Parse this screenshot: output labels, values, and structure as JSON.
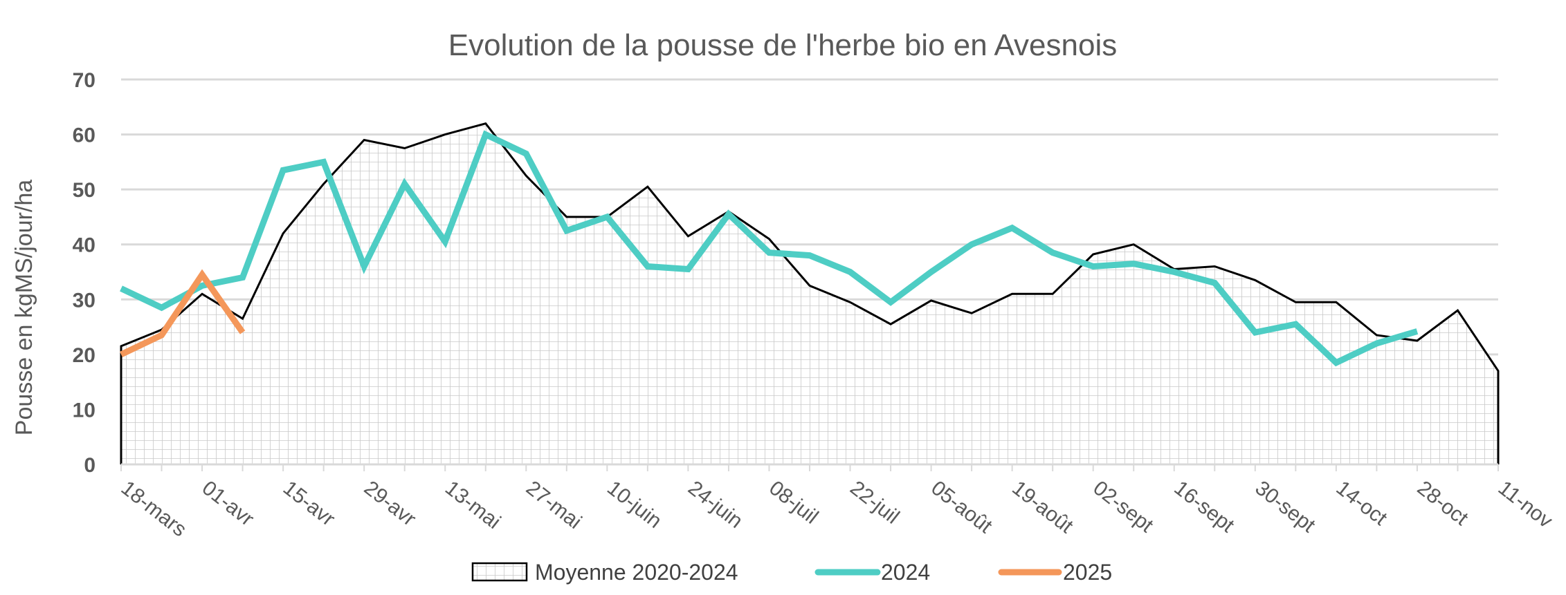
{
  "chart_data": {
    "type": "line",
    "title": "Evolution de la pousse de l'herbe bio en Avesnois",
    "ylabel": "Pousse en kgMS/jour/ha",
    "xlabel": "",
    "ylim": [
      0,
      70
    ],
    "yticks": [
      0,
      10,
      20,
      30,
      40,
      50,
      60,
      70
    ],
    "x_tick_labels": [
      "18-mars",
      "01-avr",
      "15-avr",
      "29-avr",
      "13-mai",
      "27-mai",
      "10-juin",
      "24-juin",
      "08-juil",
      "22-juil",
      "05-août",
      "19-août",
      "02-sept",
      "16-sept",
      "30-sept",
      "14-oct",
      "28-oct",
      "11-nov"
    ],
    "x_start_date": "2025-03-18",
    "x_step_days": 7,
    "grid": true,
    "legend_position": "bottom",
    "series": [
      {
        "name": "Moyenne 2020-2024",
        "style": "area-hatched",
        "color": "#000000",
        "values": [
          21.5,
          24.5,
          31,
          26.5,
          42,
          51,
          59,
          57.5,
          60,
          62,
          52.5,
          45,
          45,
          50.5,
          41.5,
          46,
          41,
          32.5,
          29.5,
          25.5,
          29.8,
          27.5,
          31,
          31,
          38.2,
          40,
          35.5,
          36,
          33.5,
          29.5,
          29.5,
          23.5,
          22.5,
          28,
          17
        ]
      },
      {
        "name": "2024",
        "style": "line",
        "color": "#4ecdc4",
        "values": [
          32,
          28.5,
          32.5,
          34,
          53.5,
          55,
          36,
          51,
          40.5,
          60,
          56.5,
          42.5,
          45,
          36,
          35.5,
          45.5,
          38.5,
          38,
          35,
          29.5,
          35,
          40,
          43,
          38.5,
          36,
          36.5,
          35,
          33,
          24,
          25.5,
          18.5,
          22,
          24.2
        ]
      },
      {
        "name": "2025",
        "style": "line",
        "color": "#f4975a",
        "values": [
          20,
          23.5,
          34.5,
          24
        ]
      }
    ]
  }
}
